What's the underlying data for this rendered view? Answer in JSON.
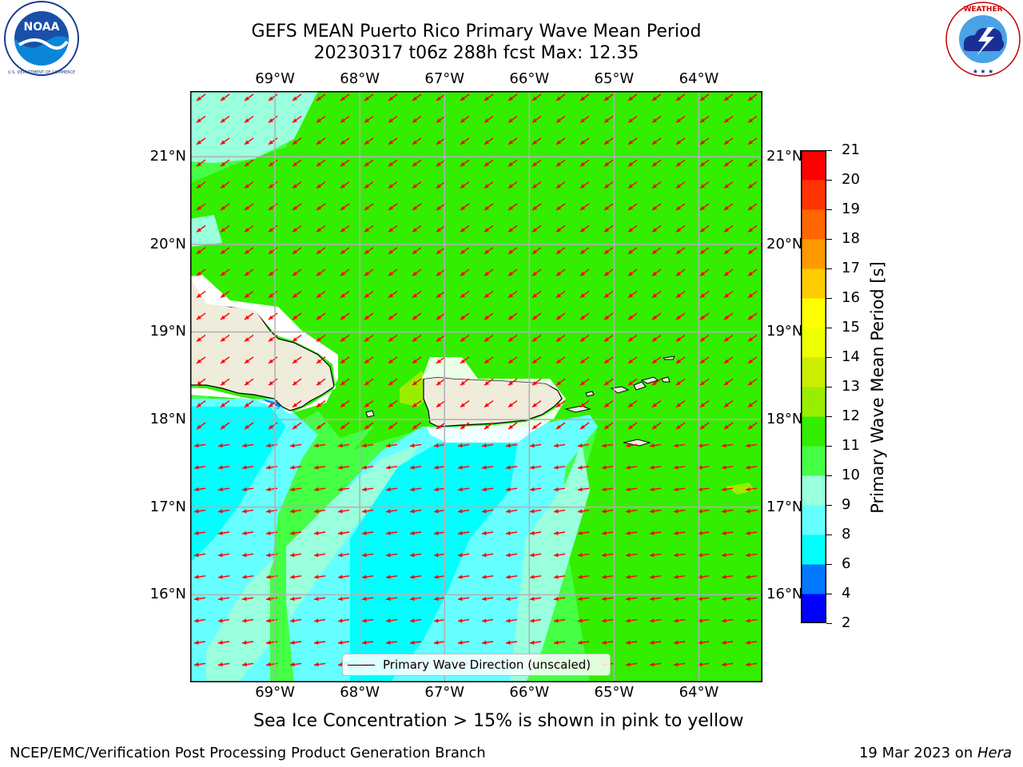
{
  "header": {
    "title": "GEFS MEAN Puerto Rico Primary Wave Mean Period",
    "subtitle": "20230317 t06z 288h fcst   Max: 12.35"
  },
  "logos": {
    "left": {
      "text": "NOAA",
      "icon": "noaa-logo-icon",
      "ring_text": "NATIONAL OCEANIC AND ATMOSPHERIC ADMINISTRATION · U.S. DEPARTMENT OF COMMERCE"
    },
    "right": {
      "icon": "nws-logo-icon",
      "ring_text": "NATIONAL WEATHER SERVICE"
    }
  },
  "map": {
    "lon_labels": [
      "69°W",
      "68°W",
      "67°W",
      "66°W",
      "65°W",
      "64°W"
    ],
    "lat_labels": [
      "21°N",
      "20°N",
      "19°N",
      "18°N",
      "17°N",
      "16°N"
    ],
    "lon_range": [
      -70.0,
      -63.25
    ],
    "lat_range": [
      15.0,
      21.75
    ],
    "lon_ticks": [
      -69,
      -68,
      -67,
      -66,
      -65,
      -64
    ],
    "lat_ticks": [
      21,
      20,
      19,
      18,
      17,
      16
    ],
    "arrow_color": "#ff0000",
    "land_color": "#efecdc",
    "grid_color": "#b0b0b0"
  },
  "legend": {
    "label": "Primary Wave Direction (unscaled)"
  },
  "colorbar": {
    "label": "Primary Wave Mean Period [s]",
    "ticks": [
      "21",
      "20",
      "19",
      "18",
      "17",
      "16",
      "15",
      "14",
      "13",
      "12",
      "11",
      "10",
      "9",
      "8",
      "6",
      "4",
      "2"
    ],
    "bands": [
      {
        "from": 2,
        "to": 4,
        "color": "#0000ff"
      },
      {
        "from": 4,
        "to": 6,
        "color": "#0078ff"
      },
      {
        "from": 6,
        "to": 8,
        "color": "#00ffff"
      },
      {
        "from": 8,
        "to": 9,
        "color": "#66ffff"
      },
      {
        "from": 9,
        "to": 10,
        "color": "#99ffdd"
      },
      {
        "from": 10,
        "to": 11,
        "color": "#44ff44"
      },
      {
        "from": 11,
        "to": 12,
        "color": "#33ee00"
      },
      {
        "from": 12,
        "to": 13,
        "color": "#99ee00"
      },
      {
        "from": 13,
        "to": 14,
        "color": "#ccee00"
      },
      {
        "from": 14,
        "to": 15,
        "color": "#eeff00"
      },
      {
        "from": 15,
        "to": 16,
        "color": "#ffff00"
      },
      {
        "from": 16,
        "to": 17,
        "color": "#ffcc00"
      },
      {
        "from": 17,
        "to": 18,
        "color": "#ff9900"
      },
      {
        "from": 18,
        "to": 19,
        "color": "#ff6600"
      },
      {
        "from": 19,
        "to": 20,
        "color": "#ff3300"
      },
      {
        "from": 20,
        "to": 21,
        "color": "#ff0000"
      }
    ]
  },
  "note": "Sea Ice Concentration > 15% is shown in pink to yellow",
  "footer": {
    "left": "NCEP/EMC/Verification Post Processing Product Generation Branch",
    "right_prefix": "19 Mar 2023 on ",
    "right_host": "Hera"
  }
}
